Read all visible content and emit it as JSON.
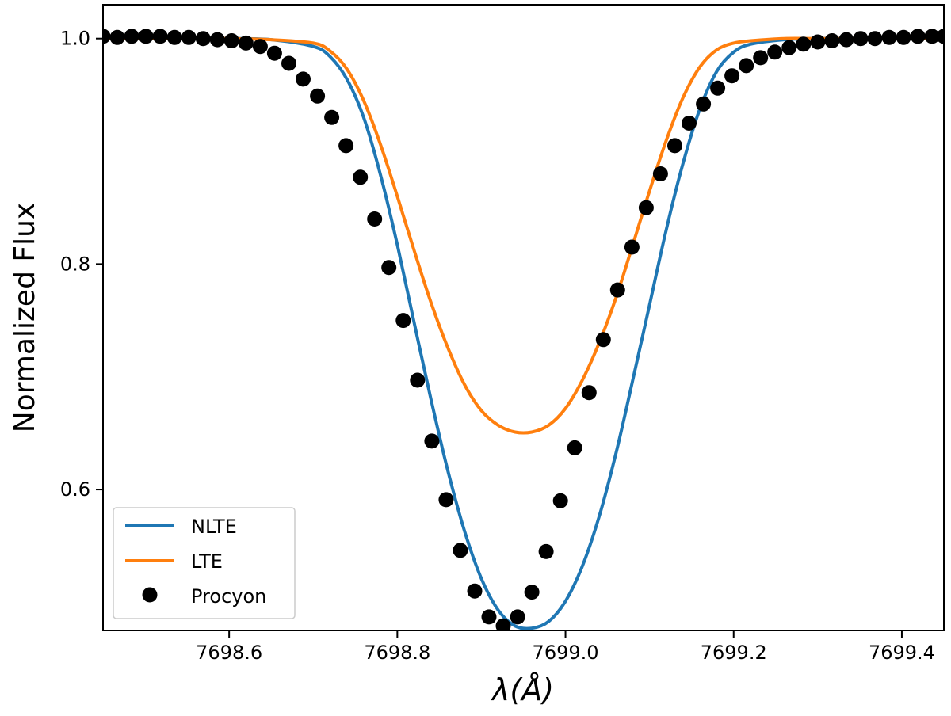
{
  "chart_data": {
    "type": "line",
    "title": "",
    "xlabel": "λ(Å)",
    "ylabel": "Normalized Flux",
    "xlim": [
      7698.45,
      7699.45
    ],
    "ylim": [
      0.475,
      1.03
    ],
    "xticks": [
      7698.6,
      7698.8,
      7699.0,
      7699.2,
      7699.4
    ],
    "xtick_labels": [
      "7698.6",
      "7698.8",
      "7699.0",
      "7699.2",
      "7699.4"
    ],
    "yticks": [
      0.6,
      0.8,
      1.0
    ],
    "ytick_labels": [
      "0.6",
      "0.8",
      "1.0"
    ],
    "grid": false,
    "legend_position": "lower-left",
    "series": [
      {
        "name": "NLTE",
        "kind": "line",
        "color": "#1f77b4",
        "x": [
          7698.45,
          7698.55,
          7698.6,
          7698.65,
          7698.7,
          7698.72,
          7698.74,
          7698.76,
          7698.78,
          7698.8,
          7698.82,
          7698.84,
          7698.86,
          7698.88,
          7698.9,
          7698.92,
          7698.94,
          7698.96,
          7698.98,
          7699.0,
          7699.02,
          7699.04,
          7699.06,
          7699.08,
          7699.1,
          7699.12,
          7699.14,
          7699.16,
          7699.18,
          7699.2,
          7699.22,
          7699.26,
          7699.3,
          7699.35,
          7699.45
        ],
        "y": [
          1.0,
          1.0,
          1.0,
          0.999,
          0.993,
          0.984,
          0.964,
          0.93,
          0.879,
          0.817,
          0.748,
          0.68,
          0.617,
          0.563,
          0.521,
          0.493,
          0.479,
          0.477,
          0.483,
          0.501,
          0.532,
          0.576,
          0.632,
          0.697,
          0.764,
          0.831,
          0.89,
          0.938,
          0.971,
          0.988,
          0.995,
          0.999,
          1.0,
          1.0,
          1.0
        ]
      },
      {
        "name": "LTE",
        "kind": "line",
        "color": "#ff7f0e",
        "x": [
          7698.45,
          7698.55,
          7698.6,
          7698.65,
          7698.7,
          7698.72,
          7698.74,
          7698.76,
          7698.78,
          7698.8,
          7698.82,
          7698.84,
          7698.86,
          7698.88,
          7698.9,
          7698.92,
          7698.94,
          7698.96,
          7698.98,
          7699.0,
          7699.02,
          7699.04,
          7699.06,
          7699.08,
          7699.1,
          7699.12,
          7699.14,
          7699.16,
          7699.18,
          7699.2,
          7699.22,
          7699.26,
          7699.3,
          7699.35,
          7699.45
        ],
        "y": [
          1.0,
          1.0,
          1.0,
          0.999,
          0.996,
          0.989,
          0.973,
          0.945,
          0.906,
          0.86,
          0.812,
          0.766,
          0.726,
          0.693,
          0.67,
          0.657,
          0.651,
          0.651,
          0.657,
          0.672,
          0.697,
          0.73,
          0.77,
          0.817,
          0.865,
          0.91,
          0.948,
          0.975,
          0.99,
          0.996,
          0.998,
          1.0,
          1.0,
          1.0,
          1.0
        ]
      },
      {
        "name": "Procyon",
        "kind": "scatter",
        "color": "#000000",
        "x": [
          7698.45,
          7698.467,
          7698.484,
          7698.501,
          7698.518,
          7698.535,
          7698.552,
          7698.569,
          7698.586,
          7698.603,
          7698.62,
          7698.637,
          7698.654,
          7698.671,
          7698.688,
          7698.705,
          7698.722,
          7698.739,
          7698.756,
          7698.773,
          7698.79,
          7698.807,
          7698.824,
          7698.841,
          7698.858,
          7698.875,
          7698.892,
          7698.909,
          7698.926,
          7698.943,
          7698.96,
          7698.977,
          7698.994,
          7699.011,
          7699.028,
          7699.045,
          7699.062,
          7699.079,
          7699.096,
          7699.113,
          7699.13,
          7699.147,
          7699.164,
          7699.181,
          7699.198,
          7699.215,
          7699.232,
          7699.249,
          7699.266,
          7699.283,
          7699.3,
          7699.317,
          7699.334,
          7699.351,
          7699.368,
          7699.385,
          7699.402,
          7699.419,
          7699.436,
          7699.45
        ],
        "y": [
          1.002,
          1.001,
          1.002,
          1.002,
          1.002,
          1.001,
          1.001,
          1.0,
          0.999,
          0.998,
          0.996,
          0.993,
          0.987,
          0.978,
          0.964,
          0.949,
          0.93,
          0.905,
          0.877,
          0.84,
          0.797,
          0.75,
          0.697,
          0.643,
          0.591,
          0.546,
          0.51,
          0.487,
          0.479,
          0.487,
          0.509,
          0.545,
          0.59,
          0.637,
          0.686,
          0.733,
          0.777,
          0.815,
          0.85,
          0.88,
          0.905,
          0.925,
          0.942,
          0.956,
          0.967,
          0.976,
          0.983,
          0.988,
          0.992,
          0.995,
          0.997,
          0.998,
          0.999,
          1.0,
          1.0,
          1.001,
          1.001,
          1.002,
          1.002,
          1.002
        ]
      }
    ]
  }
}
